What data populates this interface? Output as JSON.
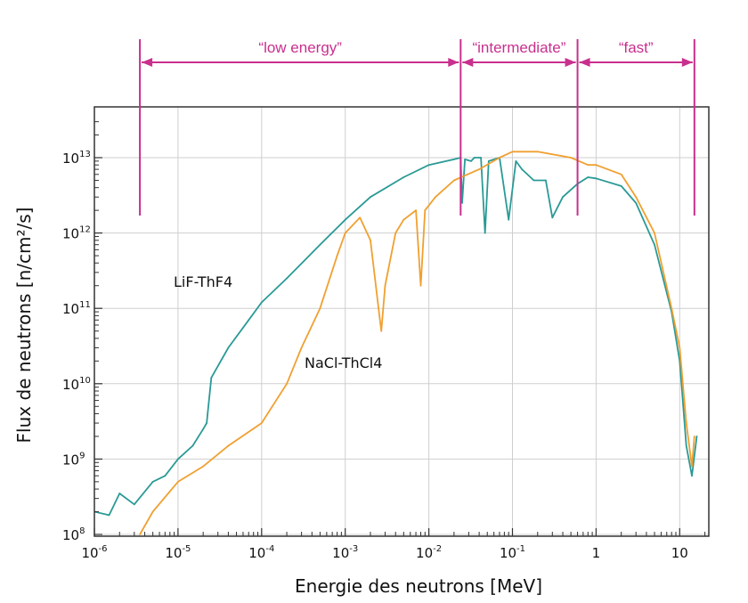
{
  "chart_data": {
    "type": "line",
    "xlabel": "Energie des neutrons [MeV]",
    "ylabel": "Flux de neutrons [n/cm²/s]",
    "x_scale": "log",
    "y_scale": "log",
    "xlim": [
      1e-06,
      20
    ],
    "ylim": [
      100000000,
      30000000000000
    ],
    "grid": true,
    "x_ticks": [
      {
        "value": 1e-06,
        "base": "10",
        "exp": "-6"
      },
      {
        "value": 1e-05,
        "base": "10",
        "exp": "-5"
      },
      {
        "value": 0.0001,
        "base": "10",
        "exp": "-4"
      },
      {
        "value": 0.001,
        "base": "10",
        "exp": "-3"
      },
      {
        "value": 0.01,
        "base": "10",
        "exp": "-2"
      },
      {
        "value": 0.1,
        "base": "10",
        "exp": "-1"
      },
      {
        "value": 1,
        "base": "1",
        "exp": ""
      },
      {
        "value": 10,
        "base": "10",
        "exp": ""
      }
    ],
    "y_ticks": [
      {
        "value": 100000000,
        "base": "10",
        "exp": "8"
      },
      {
        "value": 1000000000,
        "base": "10",
        "exp": "9"
      },
      {
        "value": 10000000000,
        "base": "10",
        "exp": "10"
      },
      {
        "value": 100000000000,
        "base": "10",
        "exp": "11"
      },
      {
        "value": 1000000000000,
        "base": "10",
        "exp": "12"
      },
      {
        "value": 10000000000000,
        "base": "10",
        "exp": "13"
      }
    ],
    "series": [
      {
        "name": "LiF-ThF4",
        "color": "#2a9a96",
        "points": [
          [
            1e-06,
            200000000
          ],
          [
            1.5e-06,
            180000000
          ],
          [
            2e-06,
            350000000
          ],
          [
            3e-06,
            250000000
          ],
          [
            5e-06,
            500000000
          ],
          [
            7e-06,
            600000000
          ],
          [
            1e-05,
            1000000000
          ],
          [
            1.5e-05,
            1500000000
          ],
          [
            2e-05,
            2500000000
          ],
          [
            2.2e-05,
            3000000000
          ],
          [
            2.5e-05,
            12000000000
          ],
          [
            4e-05,
            30000000000
          ],
          [
            7e-05,
            70000000000
          ],
          [
            0.0001,
            120000000000
          ],
          [
            0.0002,
            250000000000
          ],
          [
            0.0005,
            700000000000
          ],
          [
            0.001,
            1500000000000
          ],
          [
            0.002,
            3000000000000
          ],
          [
            0.005,
            5500000000000
          ],
          [
            0.01,
            8000000000000
          ],
          [
            0.02,
            9500000000000
          ],
          [
            0.024,
            10000000000000
          ],
          [
            0.025,
            2500000000000
          ],
          [
            0.027,
            9500000000000
          ],
          [
            0.032,
            9000000000000
          ],
          [
            0.035,
            10000000000000
          ],
          [
            0.042,
            10000000000000
          ],
          [
            0.047,
            1000000000000
          ],
          [
            0.052,
            9000000000000
          ],
          [
            0.07,
            10000000000000
          ],
          [
            0.09,
            1500000000000
          ],
          [
            0.11,
            9000000000000
          ],
          [
            0.13,
            7000000000000
          ],
          [
            0.18,
            5000000000000
          ],
          [
            0.25,
            5000000000000
          ],
          [
            0.3,
            1600000000000
          ],
          [
            0.4,
            3000000000000
          ],
          [
            0.6,
            4500000000000
          ],
          [
            0.8,
            5500000000000
          ],
          [
            1,
            5300000000000
          ],
          [
            2,
            4200000000000
          ],
          [
            3,
            2500000000000
          ],
          [
            5,
            700000000000
          ],
          [
            8,
            90000000000
          ],
          [
            10,
            20000000000
          ],
          [
            12,
            1500000000
          ],
          [
            14,
            600000000
          ],
          [
            16,
            2000000000
          ]
        ]
      },
      {
        "name": "NaCl-ThCl4",
        "color": "#f0a030",
        "points": [
          [
            3.5e-06,
            100000000
          ],
          [
            5e-06,
            200000000
          ],
          [
            1e-05,
            500000000
          ],
          [
            2e-05,
            800000000
          ],
          [
            4e-05,
            1500000000
          ],
          [
            0.0001,
            3000000000
          ],
          [
            0.0002,
            10000000000
          ],
          [
            0.0003,
            30000000000
          ],
          [
            0.0005,
            100000000000
          ],
          [
            0.0008,
            500000000000
          ],
          [
            0.001,
            1000000000000
          ],
          [
            0.0015,
            1600000000000
          ],
          [
            0.002,
            800000000000
          ],
          [
            0.0025,
            100000000000
          ],
          [
            0.0027,
            50000000000
          ],
          [
            0.003,
            200000000000
          ],
          [
            0.004,
            1000000000000
          ],
          [
            0.005,
            1500000000000
          ],
          [
            0.007,
            2000000000000
          ],
          [
            0.008,
            200000000000
          ],
          [
            0.009,
            2000000000000
          ],
          [
            0.012,
            3000000000000
          ],
          [
            0.02,
            5000000000000
          ],
          [
            0.04,
            7000000000000
          ],
          [
            0.07,
            10000000000000
          ],
          [
            0.1,
            12000000000000
          ],
          [
            0.2,
            12000000000000
          ],
          [
            0.5,
            10000000000000
          ],
          [
            0.8,
            8000000000000
          ],
          [
            1,
            8000000000000
          ],
          [
            2,
            6000000000000
          ],
          [
            3,
            3000000000000
          ],
          [
            5,
            1000000000000
          ],
          [
            8,
            100000000000
          ],
          [
            10,
            30000000000
          ],
          [
            12,
            3000000000
          ],
          [
            14,
            800000000
          ],
          [
            15,
            2000000000
          ]
        ]
      }
    ],
    "annotations": [
      {
        "text": "“low energy”",
        "x_from": 3.5e-06,
        "x_to": 0.024
      },
      {
        "text": "“intermediate”",
        "x_from": 0.024,
        "x_to": 0.6
      },
      {
        "text": "“fast”",
        "x_from": 0.6,
        "x_to": 15
      }
    ],
    "annotation_color": "#c8308e"
  }
}
